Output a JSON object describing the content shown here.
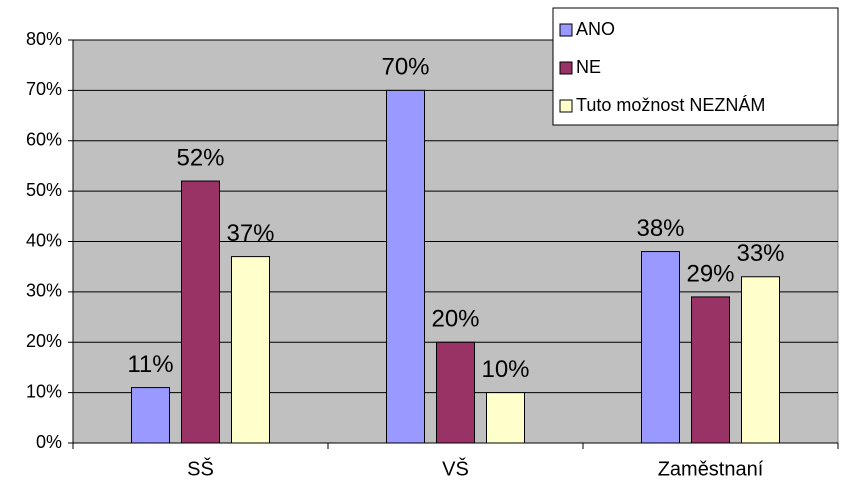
{
  "chart_data": {
    "type": "bar",
    "categories": [
      "SŠ",
      "VŠ",
      "Zaměstnaní"
    ],
    "series": [
      {
        "name": "ANO",
        "color": "#9999ff",
        "values": [
          11,
          70,
          38
        ],
        "value_labels": [
          "11%",
          "70%",
          "38%"
        ]
      },
      {
        "name": "NE",
        "color": "#993366",
        "values": [
          52,
          20,
          29
        ],
        "value_labels": [
          "52%",
          "20%",
          "29%"
        ]
      },
      {
        "name": "Tuto možnost NEZNÁM",
        "color": "#ffffcc",
        "values": [
          37,
          10,
          33
        ],
        "value_labels": [
          "37%",
          "10%",
          "33%"
        ]
      }
    ],
    "ylim": [
      0,
      80
    ],
    "yticks": [
      {
        "value": 0,
        "label": "0%"
      },
      {
        "value": 10,
        "label": "10%"
      },
      {
        "value": 20,
        "label": "20%"
      },
      {
        "value": 30,
        "label": "30%"
      },
      {
        "value": 40,
        "label": "40%"
      },
      {
        "value": 50,
        "label": "50%"
      },
      {
        "value": 60,
        "label": "60%"
      },
      {
        "value": 70,
        "label": "70%"
      },
      {
        "value": 80,
        "label": "80%"
      }
    ],
    "grid": true,
    "legend": "top-right",
    "plot_background": "#c0c0c0"
  }
}
